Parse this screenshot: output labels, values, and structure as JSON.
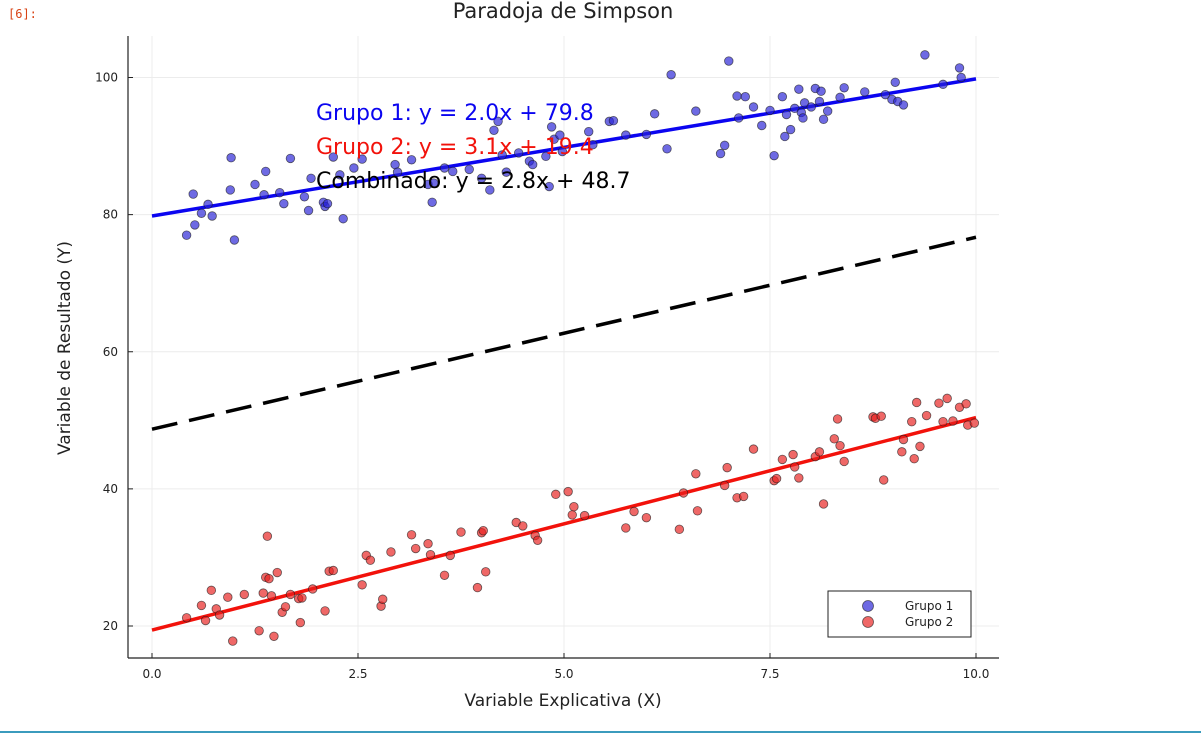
{
  "cell": {
    "prompt": "[6]:"
  },
  "colors": {
    "grupo1": "#2a23d6",
    "grupo2": "#e8201f",
    "combined": "#000000",
    "line1": "#0b05f0",
    "line2": "#f2120b"
  },
  "chart_data": {
    "type": "scatter",
    "title": "Paradoja de Simpson",
    "xlabel": "Variable Explicativa (X)",
    "ylabel": "Variable de Resultado (Y)",
    "xlim": [
      -0.3,
      10.3
    ],
    "ylim": [
      15,
      106
    ],
    "xticks": [
      0.0,
      2.5,
      5.0,
      7.5,
      10.0
    ],
    "xtick_labels": [
      "0.0",
      "2.5",
      "5.0",
      "7.5",
      "10.0"
    ],
    "yticks": [
      20,
      40,
      60,
      80,
      100
    ],
    "ytick_labels": [
      "20",
      "40",
      "60",
      "80",
      "100"
    ],
    "grid": true,
    "legend_position": "bottom-right",
    "series": [
      {
        "name": "Grupo 1",
        "points": [
          [
            0.42,
            77.0
          ],
          [
            0.5,
            83.0
          ],
          [
            0.52,
            78.5
          ],
          [
            0.6,
            80.2
          ],
          [
            0.68,
            81.5
          ],
          [
            0.73,
            79.8
          ],
          [
            0.95,
            83.6
          ],
          [
            0.96,
            88.3
          ],
          [
            1.0,
            76.3
          ],
          [
            1.25,
            84.4
          ],
          [
            1.36,
            82.9
          ],
          [
            1.38,
            86.3
          ],
          [
            1.55,
            83.2
          ],
          [
            1.6,
            81.6
          ],
          [
            1.68,
            88.2
          ],
          [
            1.85,
            82.6
          ],
          [
            1.9,
            80.6
          ],
          [
            1.93,
            85.3
          ],
          [
            2.08,
            81.8
          ],
          [
            2.1,
            81.2
          ],
          [
            2.13,
            81.6
          ],
          [
            2.2,
            88.4
          ],
          [
            2.28,
            85.8
          ],
          [
            2.32,
            79.4
          ],
          [
            2.45,
            86.8
          ],
          [
            2.55,
            88.1
          ],
          [
            2.95,
            87.3
          ],
          [
            2.98,
            86.2
          ],
          [
            3.15,
            88.0
          ],
          [
            3.35,
            84.4
          ],
          [
            3.4,
            81.8
          ],
          [
            3.42,
            84.6
          ],
          [
            3.55,
            86.8
          ],
          [
            3.65,
            86.3
          ],
          [
            3.85,
            86.6
          ],
          [
            4.0,
            85.3
          ],
          [
            4.1,
            83.6
          ],
          [
            4.15,
            92.3
          ],
          [
            4.2,
            93.6
          ],
          [
            4.25,
            88.7
          ],
          [
            4.3,
            86.2
          ],
          [
            4.45,
            89.0
          ],
          [
            4.58,
            87.8
          ],
          [
            4.62,
            87.3
          ],
          [
            4.78,
            88.5
          ],
          [
            4.82,
            84.1
          ],
          [
            4.85,
            92.8
          ],
          [
            4.88,
            91.0
          ],
          [
            4.95,
            91.6
          ],
          [
            4.98,
            89.2
          ],
          [
            5.3,
            92.1
          ],
          [
            5.35,
            90.2
          ],
          [
            5.55,
            93.6
          ],
          [
            5.6,
            93.7
          ],
          [
            5.75,
            91.6
          ],
          [
            6.0,
            91.7
          ],
          [
            6.1,
            94.7
          ],
          [
            6.25,
            89.6
          ],
          [
            6.3,
            100.4
          ],
          [
            6.6,
            95.1
          ],
          [
            6.9,
            88.9
          ],
          [
            6.95,
            90.1
          ],
          [
            7.0,
            102.4
          ],
          [
            7.1,
            97.3
          ],
          [
            7.12,
            94.1
          ],
          [
            7.2,
            97.2
          ],
          [
            7.3,
            95.7
          ],
          [
            7.4,
            93.0
          ],
          [
            7.5,
            95.2
          ],
          [
            7.55,
            88.6
          ],
          [
            7.65,
            97.2
          ],
          [
            7.68,
            91.4
          ],
          [
            7.7,
            94.6
          ],
          [
            7.75,
            92.4
          ],
          [
            7.8,
            95.5
          ],
          [
            7.85,
            98.3
          ],
          [
            7.88,
            94.9
          ],
          [
            7.9,
            94.1
          ],
          [
            7.92,
            96.3
          ],
          [
            8.0,
            95.7
          ],
          [
            8.05,
            98.4
          ],
          [
            8.1,
            96.5
          ],
          [
            8.12,
            98.0
          ],
          [
            8.15,
            93.9
          ],
          [
            8.2,
            95.1
          ],
          [
            8.35,
            97.1
          ],
          [
            8.4,
            98.5
          ],
          [
            8.65,
            97.9
          ],
          [
            8.9,
            97.5
          ],
          [
            8.98,
            96.8
          ],
          [
            9.02,
            99.3
          ],
          [
            9.05,
            96.5
          ],
          [
            9.12,
            96.0
          ],
          [
            9.38,
            103.3
          ],
          [
            9.6,
            99.0
          ],
          [
            9.8,
            101.4
          ],
          [
            9.82,
            100.0
          ]
        ]
      },
      {
        "name": "Grupo 2",
        "points": [
          [
            0.42,
            21.2
          ],
          [
            0.6,
            23.0
          ],
          [
            0.65,
            20.8
          ],
          [
            0.72,
            25.2
          ],
          [
            0.78,
            22.5
          ],
          [
            0.82,
            21.6
          ],
          [
            0.92,
            24.2
          ],
          [
            0.98,
            17.8
          ],
          [
            1.12,
            24.6
          ],
          [
            1.3,
            19.3
          ],
          [
            1.35,
            24.8
          ],
          [
            1.38,
            27.1
          ],
          [
            1.4,
            33.1
          ],
          [
            1.42,
            26.9
          ],
          [
            1.45,
            24.4
          ],
          [
            1.48,
            18.5
          ],
          [
            1.52,
            27.8
          ],
          [
            1.58,
            22.0
          ],
          [
            1.62,
            22.8
          ],
          [
            1.68,
            24.6
          ],
          [
            1.78,
            24.0
          ],
          [
            1.8,
            20.5
          ],
          [
            1.82,
            24.1
          ],
          [
            1.95,
            25.4
          ],
          [
            2.1,
            22.2
          ],
          [
            2.15,
            28.0
          ],
          [
            2.2,
            28.1
          ],
          [
            2.55,
            26.0
          ],
          [
            2.6,
            30.3
          ],
          [
            2.65,
            29.6
          ],
          [
            2.78,
            22.9
          ],
          [
            2.8,
            23.9
          ],
          [
            2.9,
            30.8
          ],
          [
            3.15,
            33.3
          ],
          [
            3.2,
            31.3
          ],
          [
            3.35,
            32.0
          ],
          [
            3.38,
            30.4
          ],
          [
            3.55,
            27.4
          ],
          [
            3.62,
            30.3
          ],
          [
            3.75,
            33.7
          ],
          [
            3.95,
            25.6
          ],
          [
            4.0,
            33.6
          ],
          [
            4.02,
            33.9
          ],
          [
            4.05,
            27.9
          ],
          [
            4.42,
            35.1
          ],
          [
            4.5,
            34.6
          ],
          [
            4.65,
            33.2
          ],
          [
            4.68,
            32.5
          ],
          [
            4.9,
            39.2
          ],
          [
            5.05,
            39.6
          ],
          [
            5.1,
            36.2
          ],
          [
            5.12,
            37.4
          ],
          [
            5.25,
            36.1
          ],
          [
            5.75,
            34.3
          ],
          [
            5.85,
            36.7
          ],
          [
            6.0,
            35.8
          ],
          [
            6.4,
            34.1
          ],
          [
            6.45,
            39.4
          ],
          [
            6.6,
            42.2
          ],
          [
            6.62,
            36.8
          ],
          [
            6.95,
            40.5
          ],
          [
            6.98,
            43.1
          ],
          [
            7.1,
            38.7
          ],
          [
            7.18,
            38.9
          ],
          [
            7.3,
            45.8
          ],
          [
            7.55,
            41.2
          ],
          [
            7.58,
            41.5
          ],
          [
            7.65,
            44.3
          ],
          [
            7.78,
            45.0
          ],
          [
            7.8,
            43.2
          ],
          [
            7.85,
            41.6
          ],
          [
            8.05,
            44.7
          ],
          [
            8.1,
            45.4
          ],
          [
            8.15,
            37.8
          ],
          [
            8.28,
            47.3
          ],
          [
            8.32,
            50.2
          ],
          [
            8.35,
            46.3
          ],
          [
            8.4,
            44.0
          ],
          [
            8.75,
            50.5
          ],
          [
            8.78,
            50.3
          ],
          [
            8.85,
            50.6
          ],
          [
            8.88,
            41.3
          ],
          [
            9.1,
            45.4
          ],
          [
            9.12,
            47.2
          ],
          [
            9.22,
            49.8
          ],
          [
            9.25,
            44.4
          ],
          [
            9.28,
            52.6
          ],
          [
            9.32,
            46.2
          ],
          [
            9.4,
            50.7
          ],
          [
            9.55,
            52.5
          ],
          [
            9.6,
            49.8
          ],
          [
            9.65,
            53.2
          ],
          [
            9.72,
            49.9
          ],
          [
            9.8,
            51.9
          ],
          [
            9.88,
            52.4
          ],
          [
            9.9,
            49.3
          ],
          [
            9.98,
            49.6
          ]
        ]
      }
    ],
    "lines": [
      {
        "name": "Grupo 1 fit",
        "intercept": 79.8,
        "slope": 2.0,
        "style": "solid"
      },
      {
        "name": "Grupo 2 fit",
        "intercept": 19.4,
        "slope": 3.1,
        "style": "solid"
      },
      {
        "name": "Combinado fit",
        "intercept": 48.7,
        "slope": 2.8,
        "style": "dashed"
      }
    ],
    "annotations": [
      "Grupo 1: y = 2.0x + 79.8",
      "Grupo 2: y = 3.1x + 19.4",
      "Combinado: y = 2.8x + 48.7"
    ],
    "legend": [
      "Grupo 1",
      "Grupo 2"
    ]
  }
}
